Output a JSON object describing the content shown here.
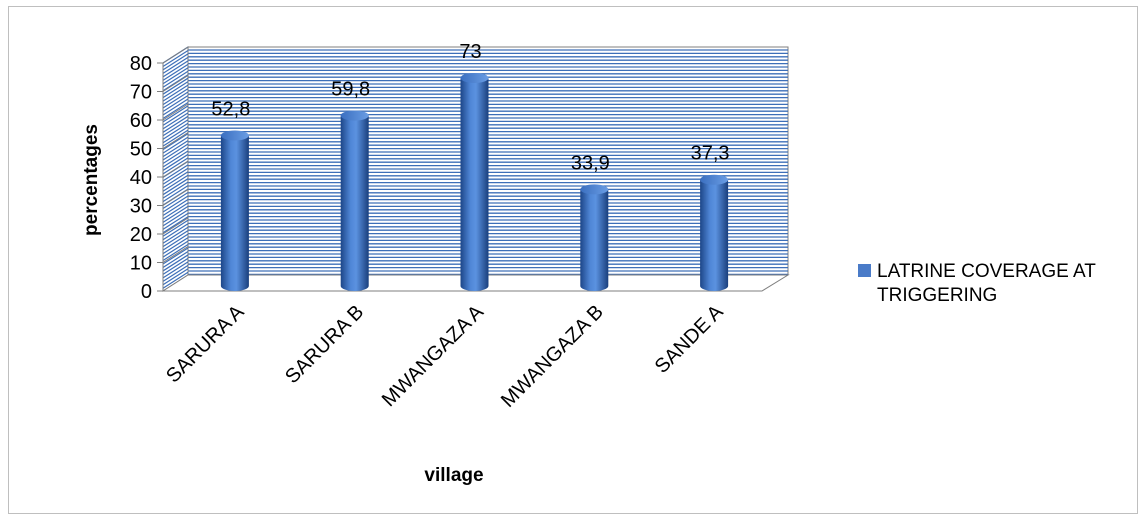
{
  "chart_data": {
    "type": "bar",
    "categories": [
      "SARURA A",
      "SARURA B",
      "MWANGAZA A",
      "MWANGAZA B",
      "SANDE A"
    ],
    "series": [
      {
        "name": "LATRINE COVERAGE AT TRIGGERING",
        "values": [
          52.8,
          59.8,
          73,
          33.9,
          37.3
        ],
        "labels": [
          "52,8",
          "59,8",
          "73",
          "33,9",
          "37,3"
        ]
      }
    ],
    "xlabel": "village",
    "ylabel": "percentages",
    "ylim": [
      0,
      80
    ],
    "yticks": [
      0,
      10,
      20,
      30,
      40,
      50,
      60,
      70,
      80
    ],
    "grid": true,
    "legend_position": "right",
    "style": "3d-cylinder",
    "colors": {
      "bar": "#4a7bc8",
      "bar_dark": "#1f4a8c",
      "grid": "#3d6fb8",
      "wall": "#ffffff"
    }
  },
  "legend": {
    "line1": "LATRINE COVERAGE AT",
    "line2": "TRIGGERING"
  }
}
